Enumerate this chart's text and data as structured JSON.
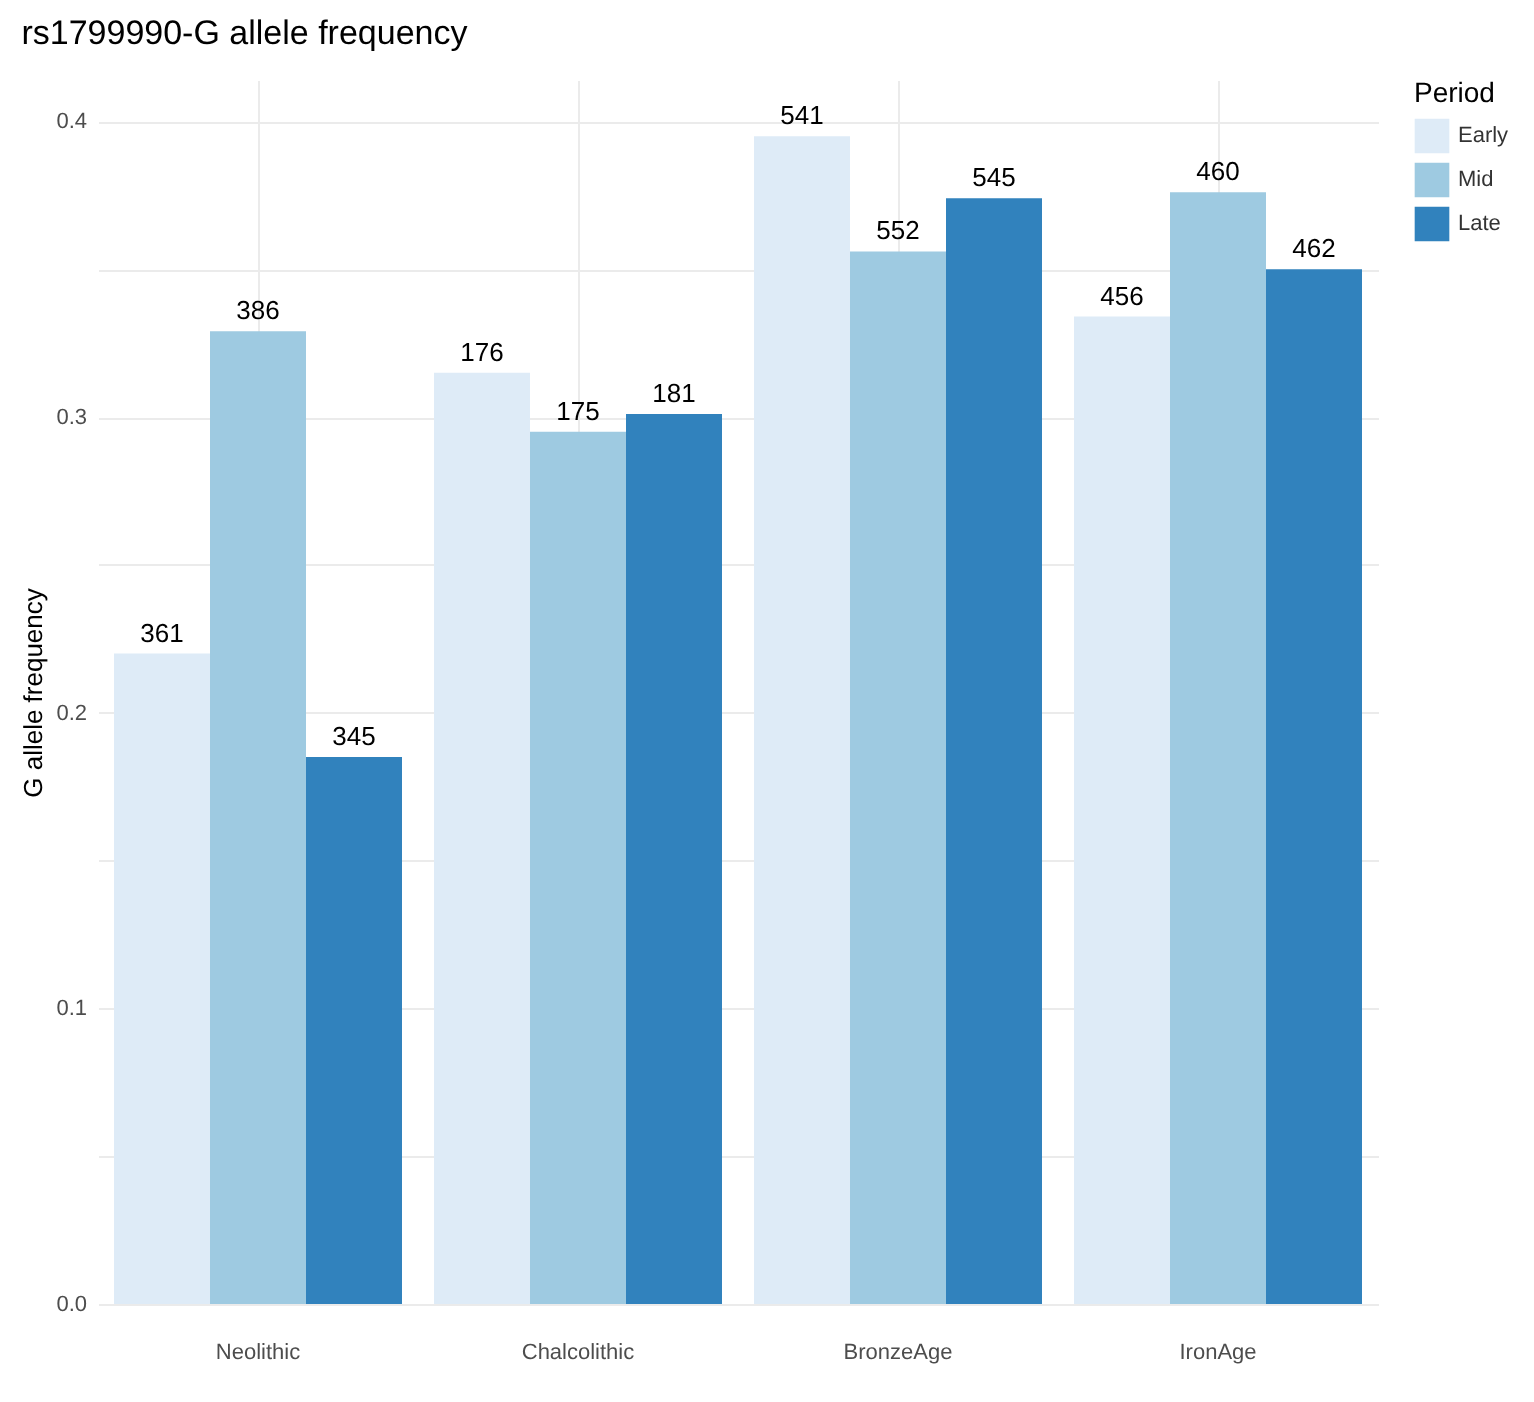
{
  "chart_data": {
    "type": "bar",
    "title": "rs1799990-G allele frequency",
    "ylabel": "G allele frequency",
    "legend_title": "Period",
    "categories": [
      "Neolithic",
      "Chalcolithic",
      "BronzeAge",
      "IronAge"
    ],
    "series": [
      {
        "name": "Early",
        "color": "#deebf7",
        "values": [
          0.22,
          0.315,
          0.395,
          0.334
        ]
      },
      {
        "name": "Mid",
        "color": "#9ecae1",
        "values": [
          0.329,
          0.295,
          0.356,
          0.376
        ]
      },
      {
        "name": "Late",
        "color": "#3182bd",
        "values": [
          0.185,
          0.301,
          0.374,
          0.35
        ]
      }
    ],
    "annotations": [
      "361",
      "176",
      "541",
      "456",
      "386",
      "175",
      "552",
      "460",
      "345",
      "181",
      "545",
      "462"
    ],
    "ylim": [
      0,
      0.414
    ],
    "yticks": [
      {
        "value": 0,
        "label": "0.0"
      },
      {
        "value": 0.05,
        "label": null
      },
      0.1,
      {
        "value": 0.15,
        "label": null
      },
      0.2,
      {
        "value": 0.25,
        "label": null
      },
      0.3,
      {
        "value": 0.35,
        "label": null
      },
      0.4
    ],
    "grid": true,
    "legend": "right"
  }
}
